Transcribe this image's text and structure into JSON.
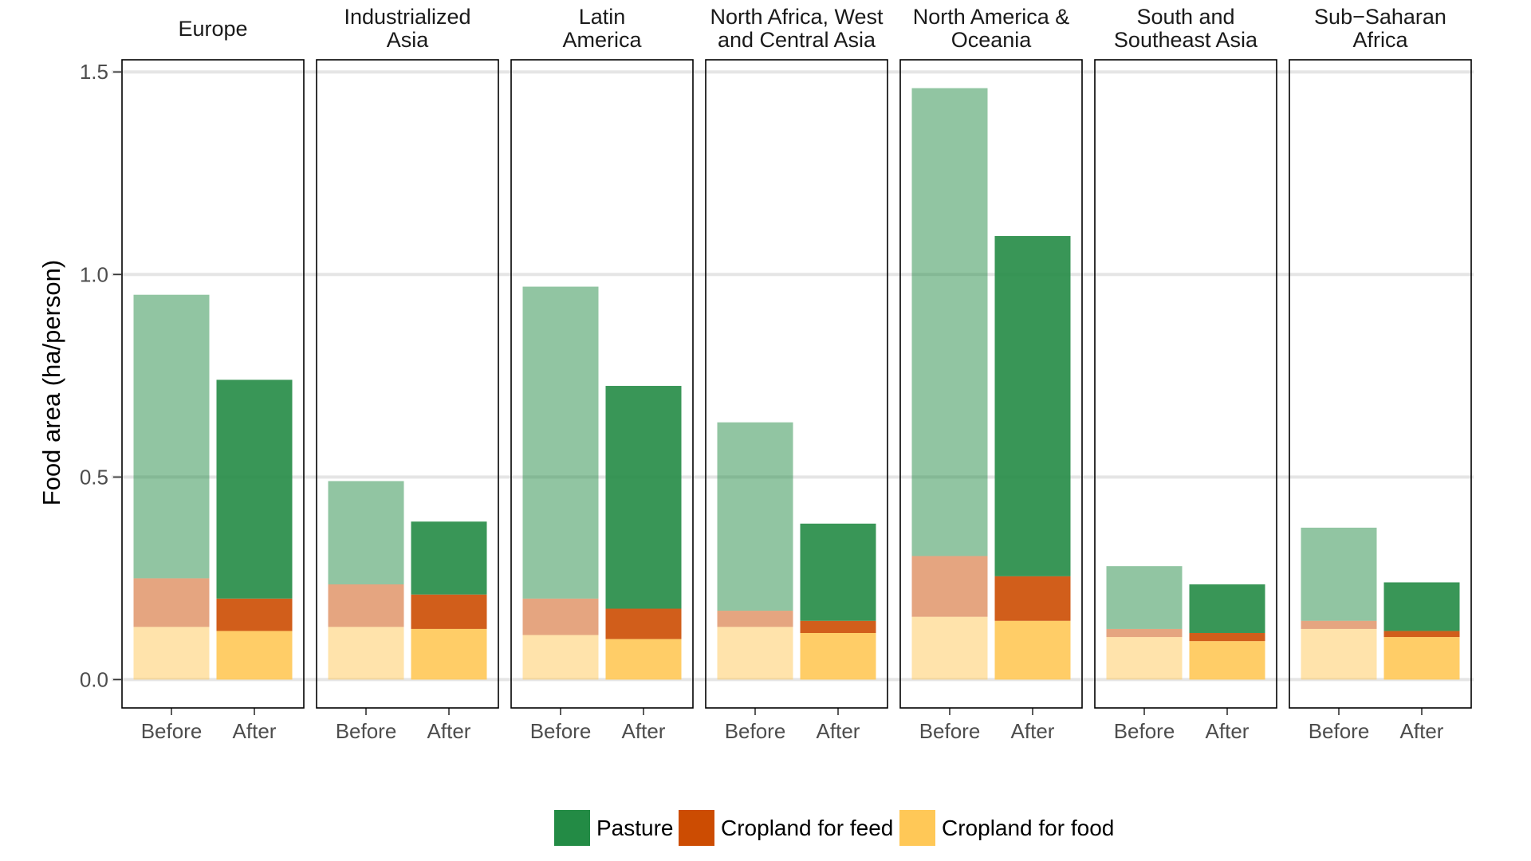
{
  "chart_data": {
    "type": "bar",
    "stacked": true,
    "ylabel": "Food area (ha/person)",
    "ylim": [
      -0.07,
      1.53
    ],
    "y_ticks": [
      "0.0",
      "0.5",
      "1.0",
      "1.5"
    ],
    "y_tick_values": [
      0,
      0.5,
      1.0,
      1.5
    ],
    "grid": true,
    "legend_position": "bottom",
    "x_categories": [
      "Before",
      "After"
    ],
    "series": [
      {
        "name": "Cropland for food",
        "color": "#FFC857"
      },
      {
        "name": "Cropland for feed",
        "color": "#CC4C02"
      },
      {
        "name": "Pasture",
        "color": "#238B45"
      }
    ],
    "legend_order": [
      "Pasture",
      "Cropland for feed",
      "Cropland for food"
    ],
    "facets": [
      {
        "title": [
          "Europe"
        ],
        "values": {
          "Before": [
            0.13,
            0.12,
            0.7
          ],
          "After": [
            0.12,
            0.08,
            0.54
          ]
        }
      },
      {
        "title": [
          "Industrialized",
          "Asia"
        ],
        "values": {
          "Before": [
            0.13,
            0.105,
            0.255
          ],
          "After": [
            0.125,
            0.085,
            0.18
          ]
        }
      },
      {
        "title": [
          "Latin",
          "America"
        ],
        "values": {
          "Before": [
            0.11,
            0.09,
            0.77
          ],
          "After": [
            0.1,
            0.075,
            0.55
          ]
        }
      },
      {
        "title": [
          "North Africa, West",
          "and Central Asia"
        ],
        "values": {
          "Before": [
            0.13,
            0.04,
            0.465
          ],
          "After": [
            0.115,
            0.03,
            0.24
          ]
        }
      },
      {
        "title": [
          "North America &",
          "Oceania"
        ],
        "values": {
          "Before": [
            0.155,
            0.15,
            1.155
          ],
          "After": [
            0.145,
            0.11,
            0.84
          ]
        }
      },
      {
        "title": [
          "South and",
          "Southeast Asia"
        ],
        "values": {
          "Before": [
            0.105,
            0.02,
            0.155
          ],
          "After": [
            0.095,
            0.02,
            0.12
          ]
        }
      },
      {
        "title": [
          "Sub−Saharan",
          "Africa"
        ],
        "values": {
          "Before": [
            0.125,
            0.02,
            0.23
          ],
          "After": [
            0.105,
            0.015,
            0.12
          ]
        }
      }
    ]
  }
}
